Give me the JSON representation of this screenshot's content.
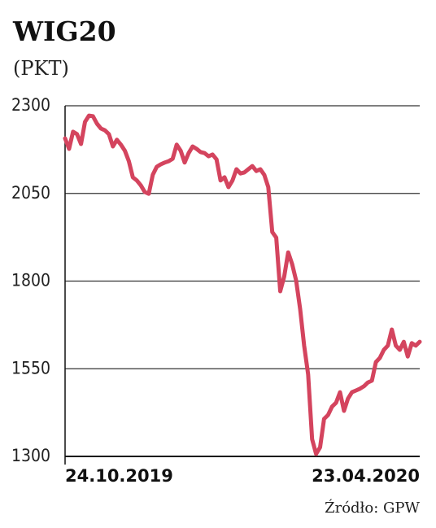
{
  "chart_data": {
    "type": "line",
    "title": "WIG20",
    "subtitle": "(PKT)",
    "source": "Źródło: GPW",
    "categories": [
      "24.10.2019",
      null,
      null,
      null,
      null,
      null,
      null,
      null,
      null,
      null,
      null,
      null,
      null,
      null,
      null,
      null,
      null,
      null,
      null,
      null,
      null,
      null,
      null,
      null,
      null,
      null,
      null,
      null,
      null,
      null,
      null,
      null,
      null,
      null,
      null,
      null,
      null,
      null,
      null,
      null,
      null,
      null,
      null,
      null,
      null,
      null,
      null,
      null,
      null,
      null,
      null,
      null,
      null,
      null,
      null,
      null,
      null,
      null,
      null,
      null,
      null,
      null,
      null,
      null,
      null,
      null,
      null,
      null,
      null,
      null,
      null,
      null,
      null,
      null,
      null,
      null,
      null,
      null,
      null,
      null,
      null,
      null,
      null,
      null,
      null,
      null,
      null,
      null,
      null,
      "23.04.2020"
    ],
    "values": [
      2207,
      2177,
      2226,
      2219,
      2191,
      2254,
      2272,
      2270,
      2249,
      2235,
      2230,
      2219,
      2184,
      2203,
      2189,
      2172,
      2142,
      2096,
      2087,
      2073,
      2054,
      2049,
      2103,
      2126,
      2133,
      2138,
      2142,
      2149,
      2189,
      2172,
      2138,
      2165,
      2184,
      2177,
      2168,
      2165,
      2156,
      2161,
      2147,
      2087,
      2096,
      2068,
      2087,
      2119,
      2107,
      2110,
      2119,
      2128,
      2114,
      2119,
      2103,
      2068,
      1940,
      1924,
      1771,
      1813,
      1882,
      1848,
      1801,
      1720,
      1616,
      1534,
      1349,
      1307,
      1326,
      1407,
      1418,
      1442,
      1453,
      1483,
      1430,
      1465,
      1483,
      1488,
      1493,
      1500,
      1511,
      1516,
      1569,
      1581,
      1604,
      1616,
      1662,
      1616,
      1604,
      1627,
      1585,
      1623,
      1616,
      1627
    ],
    "color": "#d4445e",
    "ylim": [
      1300,
      2300
    ],
    "yticks": [
      1300,
      1550,
      1800,
      2050,
      2300
    ],
    "grid": true
  }
}
